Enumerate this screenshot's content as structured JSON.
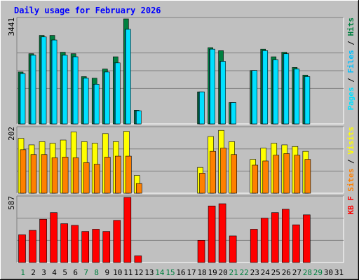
{
  "title": "Daily usage for February 2026",
  "colors": {
    "background": "#c0c0c0",
    "title": "#0000ff",
    "hits": "#008040",
    "files": "#00c0ff",
    "pages": "#00e0ff",
    "visits": "#ffff00",
    "sites": "#ff8000",
    "kbytes": "#ff0000",
    "weekend_label": "#008040",
    "weekday_label": "#000000",
    "gridline": "#808080"
  },
  "chart_data": [
    {
      "type": "bar",
      "panel": "top",
      "ymax_label": "3441",
      "ylim": [
        0,
        3441
      ],
      "right_label": [
        {
          "text": "Pages",
          "color": "#00e0ff"
        },
        {
          "text": " / ",
          "color": "#000000"
        },
        {
          "text": "Files",
          "color": "#00c0ff"
        },
        {
          "text": " / ",
          "color": "#000000"
        },
        {
          "text": "Hits",
          "color": "#008040"
        }
      ],
      "categories": [
        "1",
        "2",
        "3",
        "4",
        "5",
        "6",
        "7",
        "8",
        "9",
        "10",
        "11",
        "12",
        "13",
        "14",
        "15",
        "16",
        "17",
        "18",
        "19",
        "20",
        "21",
        "22",
        "23",
        "24",
        "25",
        "26",
        "27",
        "28",
        "29",
        "30",
        "31"
      ],
      "series": [
        {
          "name": "Hits",
          "values": [
            1700,
            2300,
            2900,
            2900,
            2350,
            2300,
            1550,
            1500,
            1800,
            2200,
            3441,
            450,
            0,
            0,
            0,
            0,
            0,
            1050,
            2500,
            2400,
            700,
            0,
            1750,
            2450,
            2200,
            2350,
            1850,
            1600,
            0,
            0,
            0
          ]
        },
        {
          "name": "Files",
          "values": [
            1650,
            2250,
            2850,
            2750,
            2250,
            2200,
            1500,
            1300,
            1700,
            2000,
            3100,
            430,
            0,
            0,
            0,
            0,
            0,
            1050,
            2450,
            2050,
            700,
            0,
            1750,
            2400,
            2100,
            2300,
            1800,
            1550,
            0,
            0,
            0
          ]
        },
        {
          "name": "Pages",
          "values": [
            1650,
            2250,
            2850,
            2750,
            2250,
            2200,
            1500,
            1300,
            1700,
            2000,
            3100,
            430,
            0,
            0,
            0,
            0,
            0,
            1050,
            2450,
            2050,
            700,
            0,
            1750,
            2400,
            2100,
            2300,
            1800,
            1550,
            0,
            0,
            0
          ]
        }
      ]
    },
    {
      "type": "bar",
      "panel": "middle",
      "ymax_label": "202",
      "ylim": [
        0,
        202
      ],
      "right_label": [
        {
          "text": "Sites",
          "color": "#ff8000"
        },
        {
          "text": " / ",
          "color": "#000000"
        },
        {
          "text": "Visits",
          "color": "#ffff00"
        }
      ],
      "categories": [
        "1",
        "2",
        "3",
        "4",
        "5",
        "6",
        "7",
        "8",
        "9",
        "10",
        "11",
        "12",
        "13",
        "14",
        "15",
        "16",
        "17",
        "18",
        "19",
        "20",
        "21",
        "22",
        "23",
        "24",
        "25",
        "26",
        "27",
        "28",
        "29",
        "30",
        "31"
      ],
      "series": [
        {
          "name": "Visits",
          "values": [
            170,
            150,
            160,
            155,
            165,
            190,
            160,
            155,
            185,
            160,
            192,
            55,
            0,
            0,
            0,
            0,
            0,
            80,
            176,
            195,
            160,
            0,
            105,
            140,
            155,
            150,
            145,
            130,
            0,
            0,
            0
          ]
        },
        {
          "name": "Sites",
          "values": [
            135,
            120,
            120,
            110,
            112,
            110,
            95,
            90,
            112,
            115,
            115,
            30,
            0,
            0,
            0,
            0,
            0,
            62,
            130,
            140,
            120,
            0,
            87,
            100,
            118,
            123,
            118,
            105,
            0,
            0,
            0
          ]
        }
      ]
    },
    {
      "type": "bar",
      "panel": "bottom",
      "ymax_label": "587",
      "ylim": [
        0,
        587
      ],
      "right_label": [
        {
          "text": "KB F",
          "color": "#ff0000"
        }
      ],
      "categories": [
        "1",
        "2",
        "3",
        "4",
        "5",
        "6",
        "7",
        "8",
        "9",
        "10",
        "11",
        "12",
        "13",
        "14",
        "15",
        "16",
        "17",
        "18",
        "19",
        "20",
        "21",
        "22",
        "23",
        "24",
        "25",
        "26",
        "27",
        "28",
        "29",
        "30",
        "31"
      ],
      "series": [
        {
          "name": "KB F",
          "values": [
            250,
            290,
            390,
            450,
            350,
            335,
            280,
            300,
            280,
            380,
            587,
            60,
            0,
            0,
            0,
            0,
            0,
            200,
            510,
            530,
            240,
            0,
            300,
            400,
            450,
            480,
            340,
            430,
            0,
            0,
            0
          ]
        }
      ]
    }
  ],
  "weekend_days": [
    "1",
    "7",
    "8",
    "14",
    "15",
    "21",
    "22",
    "28",
    "29"
  ]
}
